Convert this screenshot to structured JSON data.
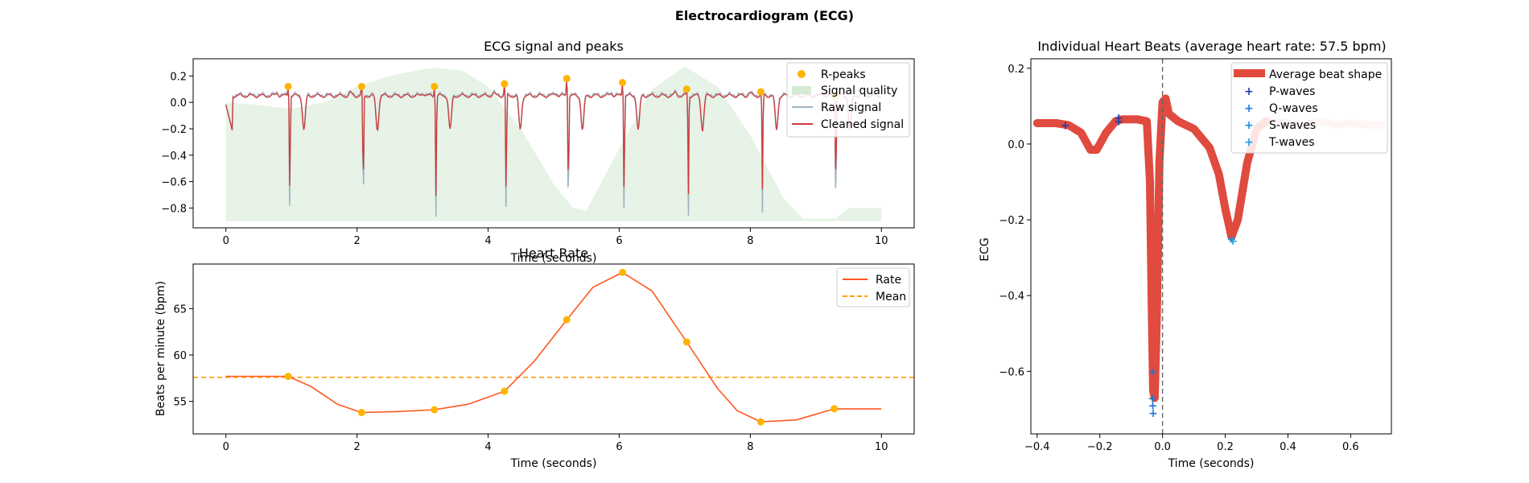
{
  "figure": {
    "suptitle": "Electrocardiogram (ECG)"
  },
  "chart_data": [
    {
      "id": "ecg",
      "type": "line",
      "title": "ECG signal and peaks",
      "xlabel": "Time (seconds)",
      "ylabel": "",
      "xlim": [
        -0.5,
        10.5
      ],
      "ylim": [
        -0.95,
        0.33
      ],
      "xticks": [
        0,
        2,
        4,
        6,
        8,
        10
      ],
      "yticks": [
        0.2,
        0.0,
        -0.2,
        -0.4,
        -0.6,
        -0.8
      ],
      "ytick_labels": [
        "0.2",
        "0.0",
        "−0.2",
        "−0.4",
        "−0.6",
        "−0.8"
      ],
      "grid": false,
      "legend_position": "upper-right",
      "legend": [
        "R-peaks",
        "Signal quality",
        "Raw signal",
        "Cleaned signal"
      ],
      "colors": {
        "rpeaks": "#ffb400",
        "quality": "#b8ddb8",
        "raw": "#9fb4c2",
        "cleaned": "#d13a3a"
      },
      "r_peaks": [
        {
          "x": 0.95,
          "y": 0.12
        },
        {
          "x": 2.07,
          "y": 0.12
        },
        {
          "x": 3.18,
          "y": 0.12
        },
        {
          "x": 4.25,
          "y": 0.14
        },
        {
          "x": 5.2,
          "y": 0.18
        },
        {
          "x": 6.05,
          "y": 0.15
        },
        {
          "x": 7.03,
          "y": 0.1
        },
        {
          "x": 8.16,
          "y": 0.08
        },
        {
          "x": 9.28,
          "y": 0.05
        }
      ],
      "beat_depth": [
        -0.7,
        -0.72,
        -0.71,
        -0.73,
        -0.7,
        -0.71,
        -0.7,
        -0.68,
        -0.69
      ],
      "raw_depth": [
        -0.88,
        -0.89,
        -0.88,
        -0.9,
        -0.88,
        -0.89,
        -0.88,
        -0.86,
        -0.88
      ],
      "quality": [
        {
          "x": 0.0,
          "y": 0.0
        },
        {
          "x": 0.5,
          "y": -0.02
        },
        {
          "x": 1.0,
          "y": -0.05
        },
        {
          "x": 1.5,
          "y": 0.0
        },
        {
          "x": 2.0,
          "y": 0.12
        },
        {
          "x": 2.5,
          "y": 0.2
        },
        {
          "x": 3.0,
          "y": 0.25
        },
        {
          "x": 3.2,
          "y": 0.26
        },
        {
          "x": 3.6,
          "y": 0.24
        },
        {
          "x": 4.0,
          "y": 0.12
        },
        {
          "x": 4.5,
          "y": -0.2
        },
        {
          "x": 5.0,
          "y": -0.62
        },
        {
          "x": 5.3,
          "y": -0.8
        },
        {
          "x": 5.5,
          "y": -0.82
        },
        {
          "x": 6.0,
          "y": -0.35
        },
        {
          "x": 6.5,
          "y": 0.1
        },
        {
          "x": 7.0,
          "y": 0.27
        },
        {
          "x": 7.5,
          "y": 0.12
        },
        {
          "x": 8.0,
          "y": -0.25
        },
        {
          "x": 8.5,
          "y": -0.72
        },
        {
          "x": 8.8,
          "y": -0.88
        },
        {
          "x": 9.3,
          "y": -0.88
        },
        {
          "x": 9.5,
          "y": -0.8
        },
        {
          "x": 10.0,
          "y": -0.8
        }
      ],
      "quality_base": -0.9,
      "signal_start": 0.0,
      "signal_end": 10.0
    },
    {
      "id": "rate",
      "type": "line",
      "title": "Heart Rate",
      "xlabel": "Time (seconds)",
      "ylabel": "Beats per minute (bpm)",
      "xlim": [
        -0.5,
        10.5
      ],
      "ylim": [
        51.5,
        69.8
      ],
      "xticks": [
        0,
        2,
        4,
        6,
        8,
        10
      ],
      "yticks": [
        55,
        60,
        65
      ],
      "grid": false,
      "legend_position": "upper-right",
      "legend": [
        "Rate",
        "Mean"
      ],
      "colors": {
        "rate": "#ff5722",
        "mean": "#ffa000",
        "points": "#ffb400"
      },
      "mean": 57.6,
      "rate_curve": [
        {
          "x": 0.0,
          "y": 57.7
        },
        {
          "x": 0.95,
          "y": 57.7
        },
        {
          "x": 1.3,
          "y": 56.6
        },
        {
          "x": 1.7,
          "y": 54.7
        },
        {
          "x": 2.07,
          "y": 53.8
        },
        {
          "x": 2.6,
          "y": 53.9
        },
        {
          "x": 3.18,
          "y": 54.1
        },
        {
          "x": 3.7,
          "y": 54.7
        },
        {
          "x": 4.25,
          "y": 56.1
        },
        {
          "x": 4.7,
          "y": 59.3
        },
        {
          "x": 5.2,
          "y": 63.8
        },
        {
          "x": 5.6,
          "y": 67.3
        },
        {
          "x": 6.05,
          "y": 68.9
        },
        {
          "x": 6.5,
          "y": 66.9
        },
        {
          "x": 7.03,
          "y": 61.4
        },
        {
          "x": 7.5,
          "y": 56.4
        },
        {
          "x": 7.8,
          "y": 54.0
        },
        {
          "x": 8.16,
          "y": 52.8
        },
        {
          "x": 8.7,
          "y": 53.0
        },
        {
          "x": 9.28,
          "y": 54.2
        },
        {
          "x": 10.0,
          "y": 54.2
        }
      ],
      "rate_points": [
        {
          "x": 0.95,
          "y": 57.7
        },
        {
          "x": 2.07,
          "y": 53.8
        },
        {
          "x": 3.18,
          "y": 54.1
        },
        {
          "x": 4.25,
          "y": 56.1
        },
        {
          "x": 5.2,
          "y": 63.8
        },
        {
          "x": 6.05,
          "y": 68.9
        },
        {
          "x": 7.03,
          "y": 61.4
        },
        {
          "x": 8.16,
          "y": 52.8
        },
        {
          "x": 9.28,
          "y": 54.2
        }
      ]
    },
    {
      "id": "beats",
      "type": "line",
      "title": "Individual Heart Beats (average heart rate: 57.5 bpm)",
      "xlabel": "Time (seconds)",
      "ylabel": "ECG",
      "xlim": [
        -0.42,
        0.73
      ],
      "ylim": [
        -0.765,
        0.225
      ],
      "xticks": [
        -0.4,
        -0.2,
        0.0,
        0.2,
        0.4,
        0.6
      ],
      "xtick_labels": [
        "−0.4",
        "−0.2",
        "0.0",
        "0.2",
        "0.4",
        "0.6"
      ],
      "yticks": [
        0.2,
        0.0,
        -0.2,
        -0.4,
        -0.6
      ],
      "ytick_labels": [
        "0.2",
        "0.0",
        "−0.2",
        "−0.4",
        "−0.6"
      ],
      "grid": false,
      "legend_position": "upper-right",
      "legend": [
        "Average beat shape",
        "P-waves",
        "Q-waves",
        "S-waves",
        "T-waves"
      ],
      "colors": {
        "average": "#e04a3f",
        "p": "#1f3fae",
        "q": "#1f77d8",
        "s": "#1f8fe0",
        "t": "#1fa0e8",
        "tail": "#f3c4bc"
      },
      "average_beat": [
        {
          "x": -0.4,
          "y": 0.055
        },
        {
          "x": -0.34,
          "y": 0.055
        },
        {
          "x": -0.3,
          "y": 0.05
        },
        {
          "x": -0.26,
          "y": 0.03
        },
        {
          "x": -0.23,
          "y": -0.015
        },
        {
          "x": -0.21,
          "y": -0.015
        },
        {
          "x": -0.18,
          "y": 0.03
        },
        {
          "x": -0.15,
          "y": 0.06
        },
        {
          "x": -0.13,
          "y": 0.065
        },
        {
          "x": -0.08,
          "y": 0.065
        },
        {
          "x": -0.05,
          "y": 0.06
        },
        {
          "x": -0.04,
          "y": -0.1
        },
        {
          "x": -0.035,
          "y": -0.4
        },
        {
          "x": -0.03,
          "y": -0.65
        },
        {
          "x": -0.025,
          "y": -0.67
        },
        {
          "x": -0.018,
          "y": -0.45
        },
        {
          "x": -0.01,
          "y": -0.05
        },
        {
          "x": 0.0,
          "y": 0.11
        },
        {
          "x": 0.01,
          "y": 0.12
        },
        {
          "x": 0.02,
          "y": 0.08
        },
        {
          "x": 0.05,
          "y": 0.06
        },
        {
          "x": 0.1,
          "y": 0.04
        },
        {
          "x": 0.15,
          "y": -0.01
        },
        {
          "x": 0.18,
          "y": -0.08
        },
        {
          "x": 0.2,
          "y": -0.17
        },
        {
          "x": 0.22,
          "y": -0.245
        },
        {
          "x": 0.24,
          "y": -0.2
        },
        {
          "x": 0.27,
          "y": -0.05
        },
        {
          "x": 0.3,
          "y": 0.04
        },
        {
          "x": 0.33,
          "y": 0.06
        }
      ],
      "tail_beat": [
        {
          "x": 0.33,
          "y": 0.06
        },
        {
          "x": 0.4,
          "y": 0.055
        },
        {
          "x": 0.45,
          "y": 0.05
        },
        {
          "x": 0.5,
          "y": 0.06
        },
        {
          "x": 0.55,
          "y": 0.05
        },
        {
          "x": 0.6,
          "y": 0.055
        },
        {
          "x": 0.65,
          "y": 0.05
        },
        {
          "x": 0.7,
          "y": 0.05
        }
      ],
      "p_waves": [
        {
          "x": -0.31,
          "y": 0.05
        },
        {
          "x": -0.14,
          "y": 0.07
        },
        {
          "x": -0.14,
          "y": 0.06
        }
      ],
      "q_waves": [
        {
          "x": -0.03,
          "y": -0.6
        },
        {
          "x": -0.032,
          "y": -0.67
        },
        {
          "x": -0.031,
          "y": -0.69
        },
        {
          "x": -0.03,
          "y": -0.71
        }
      ],
      "s_waves": [
        {
          "x": 0.22,
          "y": -0.25
        }
      ],
      "t_waves": [
        {
          "x": 0.225,
          "y": -0.255
        }
      ],
      "vline_x": 0.0
    }
  ]
}
